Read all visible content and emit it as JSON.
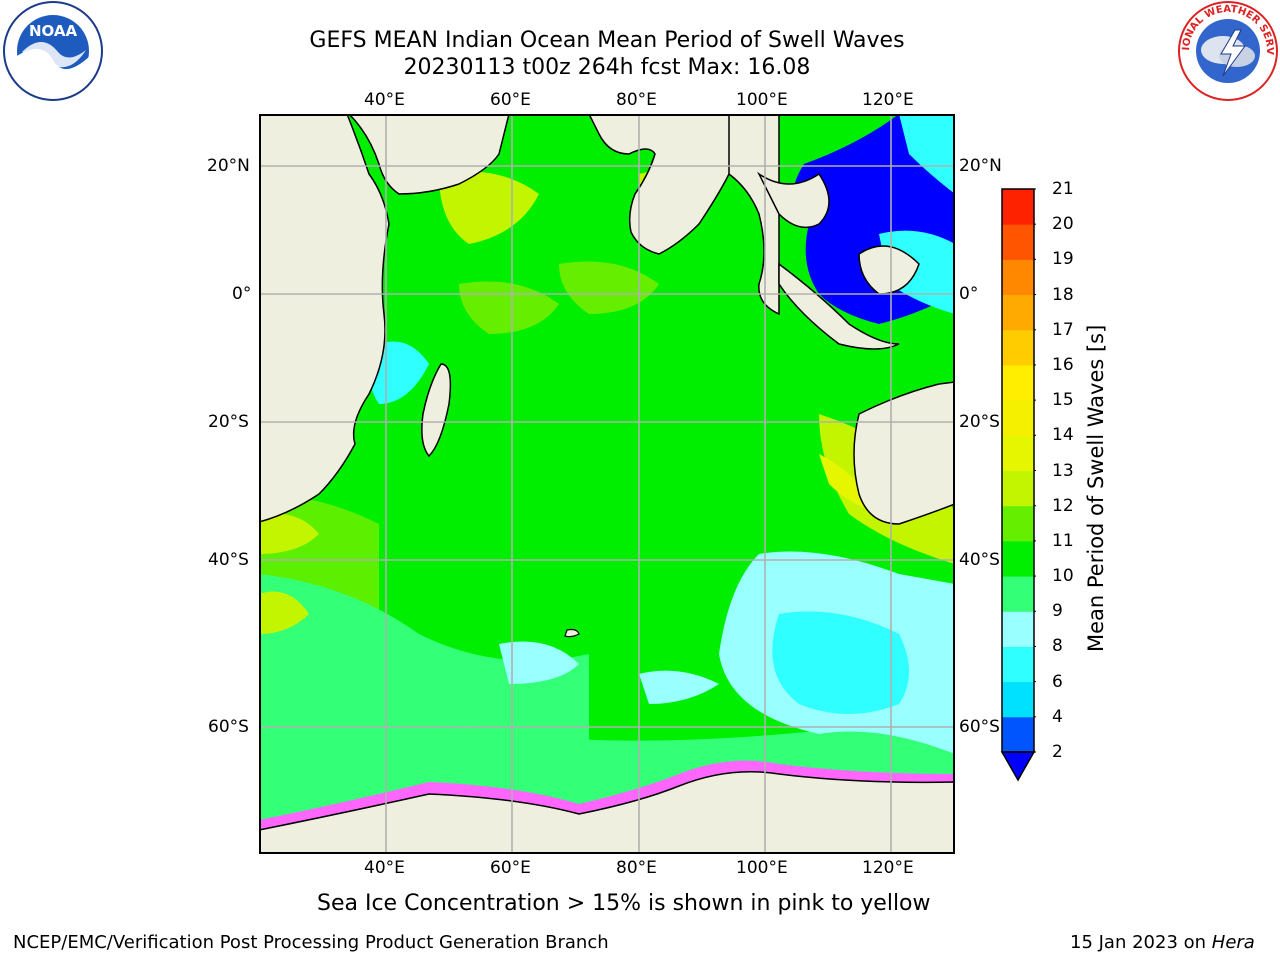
{
  "header": {
    "title_line1": "GEFS MEAN Indian Ocean Mean Period of Swell Waves",
    "title_line2": "20230113 t00z 264h fcst   Max: 16.08"
  },
  "logos": {
    "left": {
      "text": "NOAA",
      "icon": "noaa-logo"
    },
    "right": {
      "text": "NATIONAL WEATHER SERVICE",
      "icon": "nws-logo"
    }
  },
  "map": {
    "lon_ticks_top": [
      "40°E",
      "60°E",
      "80°E",
      "100°E",
      "120°E"
    ],
    "lon_ticks_bottom": [
      "40°E",
      "60°E",
      "80°E",
      "100°E",
      "120°E"
    ],
    "lat_ticks_left": [
      "20°N",
      "0°",
      "20°S",
      "40°S",
      "60°S"
    ],
    "lat_ticks_right": [
      "20°N",
      "0°",
      "20°S",
      "40°S",
      "60°S"
    ],
    "colors": {
      "land": "#efefdf",
      "grid": "#b0b0b0",
      "ice": "#ff66ff"
    }
  },
  "colorbar": {
    "title": "Mean Period of Swell Waves [s]",
    "levels": [
      "2",
      "4",
      "6",
      "8",
      "9",
      "10",
      "11",
      "12",
      "13",
      "14",
      "15",
      "16",
      "17",
      "18",
      "19",
      "20",
      "21"
    ],
    "colors": [
      "#0055ff",
      "#00e0ff",
      "#30ffff",
      "#99ffff",
      "#33ff77",
      "#00ee00",
      "#66ee00",
      "#c4f500",
      "#e6f500",
      "#f5f000",
      "#ffee00",
      "#ffcc00",
      "#ffaa00",
      "#ff8800",
      "#ff5500",
      "#ff2200"
    ],
    "under_color": "#0000ff"
  },
  "caption": "Sea Ice Concentration > 15% is shown in pink to yellow",
  "footer": {
    "left": "NCEP/EMC/Verification Post Processing Product Generation Branch",
    "right_date": "15 Jan 2023 on ",
    "right_host": "Hera"
  }
}
